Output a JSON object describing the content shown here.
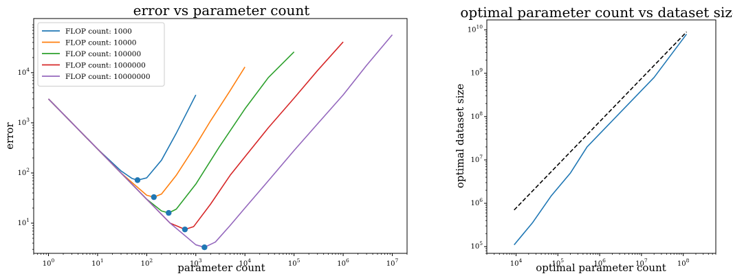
{
  "chart_data": [
    {
      "type": "line",
      "title": "error vs parameter count",
      "xlabel": "parameter count",
      "ylabel": "error",
      "xscale": "log",
      "yscale": "log",
      "xlim": [
        0.5,
        20000000
      ],
      "ylim": [
        2.5,
        120000
      ],
      "xticks": [
        {
          "value": 1,
          "base": "10",
          "exp": "0"
        },
        {
          "value": 10,
          "base": "10",
          "exp": "1"
        },
        {
          "value": 100,
          "base": "10",
          "exp": "2"
        },
        {
          "value": 1000,
          "base": "10",
          "exp": "3"
        },
        {
          "value": 10000,
          "base": "10",
          "exp": "4"
        },
        {
          "value": 100000,
          "base": "10",
          "exp": "5"
        },
        {
          "value": 1000000,
          "base": "10",
          "exp": "6"
        },
        {
          "value": 10000000,
          "base": "10",
          "exp": "7"
        }
      ],
      "yticks": [
        {
          "value": 10,
          "base": "10",
          "exp": "1"
        },
        {
          "value": 100,
          "base": "10",
          "exp": "2"
        },
        {
          "value": 1000,
          "base": "10",
          "exp": "3"
        },
        {
          "value": 10000,
          "base": "10",
          "exp": "4"
        }
      ],
      "grid": false,
      "legend_position": "top-left",
      "series": [
        {
          "name": "FLOP count: 1000",
          "color": "#1f77b4",
          "x": [
            1,
            3,
            10,
            30,
            50,
            65,
            100,
            200,
            400,
            1000
          ],
          "y": [
            3000,
            1000,
            300,
            110,
            78,
            72,
            80,
            180,
            620,
            3600
          ],
          "optimum": {
            "x": 65,
            "y": 72
          }
        },
        {
          "name": "FLOP count: 10000",
          "color": "#ff7f0e",
          "x": [
            1,
            3,
            10,
            30,
            100,
            140,
            200,
            400,
            1000,
            2000,
            5000,
            10000
          ],
          "y": [
            3000,
            1000,
            300,
            100,
            36,
            33,
            38,
            90,
            360,
            1100,
            4400,
            13000
          ],
          "optimum": {
            "x": 140,
            "y": 33
          }
        },
        {
          "name": "FLOP count: 100000",
          "color": "#2ca02c",
          "x": [
            1,
            3,
            10,
            30,
            100,
            200,
            280,
            400,
            1000,
            3000,
            10000,
            30000,
            100000
          ],
          "y": [
            3000,
            1000,
            300,
            100,
            30,
            17.5,
            16,
            19,
            60,
            330,
            1900,
            8000,
            26000
          ],
          "optimum": {
            "x": 280,
            "y": 16
          }
        },
        {
          "name": "FLOP count: 1000000",
          "color": "#d62728",
          "x": [
            1,
            3,
            10,
            30,
            100,
            300,
            600,
            900,
            2000,
            5000,
            10000,
            30000,
            100000,
            300000,
            1000000
          ],
          "y": [
            3000,
            1000,
            300,
            100,
            30,
            10,
            7.5,
            8.5,
            24,
            90,
            210,
            800,
            3100,
            11000,
            41000
          ],
          "optimum": {
            "x": 600,
            "y": 7.5
          }
        },
        {
          "name": "FLOP count: 10000000",
          "color": "#9467bd",
          "x": [
            1,
            3,
            10,
            30,
            100,
            300,
            1000,
            1500,
            2500,
            5000,
            10000,
            30000,
            100000,
            300000,
            1000000,
            3000000,
            10000000
          ],
          "y": [
            3000,
            1000,
            300,
            100,
            30,
            10,
            3.7,
            3.3,
            4.2,
            9,
            20,
            70,
            280,
            950,
            3600,
            14000,
            57000
          ],
          "optimum": {
            "x": 1500,
            "y": 3.3
          }
        }
      ],
      "optimum_marker_color": "#1f77b4"
    },
    {
      "type": "line",
      "title": "optimal parameter count vs dataset size",
      "xlabel": "optimal parameter count",
      "ylabel": "optimal dataset size",
      "xscale": "log",
      "yscale": "log",
      "xlim": [
        2000,
        600000000
      ],
      "ylim": [
        70000,
        17000000000
      ],
      "xticks": [
        {
          "value": 10000,
          "base": "10",
          "exp": "4"
        },
        {
          "value": 100000,
          "base": "10",
          "exp": "5"
        },
        {
          "value": 1000000,
          "base": "10",
          "exp": "6"
        },
        {
          "value": 10000000,
          "base": "10",
          "exp": "7"
        },
        {
          "value": 100000000,
          "base": "10",
          "exp": "8"
        }
      ],
      "yticks": [
        {
          "value": 100000,
          "base": "10",
          "exp": "5"
        },
        {
          "value": 1000000,
          "base": "10",
          "exp": "6"
        },
        {
          "value": 10000000,
          "base": "10",
          "exp": "7"
        },
        {
          "value": 100000000,
          "base": "10",
          "exp": "8"
        },
        {
          "value": 1000000000,
          "base": "10",
          "exp": "9"
        },
        {
          "value": 10000000000,
          "base": "10",
          "exp": "10"
        }
      ],
      "grid": false,
      "series": [
        {
          "color": "#1f77b4",
          "style": "solid",
          "x": [
            9000,
            25000,
            70000,
            200000,
            500000,
            1500000,
            5000000,
            20000000,
            120000000
          ],
          "y": [
            110000,
            360000,
            1500000,
            5000000,
            20000000,
            60000000,
            200000000,
            800000000,
            8000000000
          ]
        },
        {
          "color": "#000000",
          "style": "dashed",
          "x": [
            9000,
            120000000
          ],
          "y": [
            700000,
            9000000000
          ]
        }
      ]
    }
  ]
}
